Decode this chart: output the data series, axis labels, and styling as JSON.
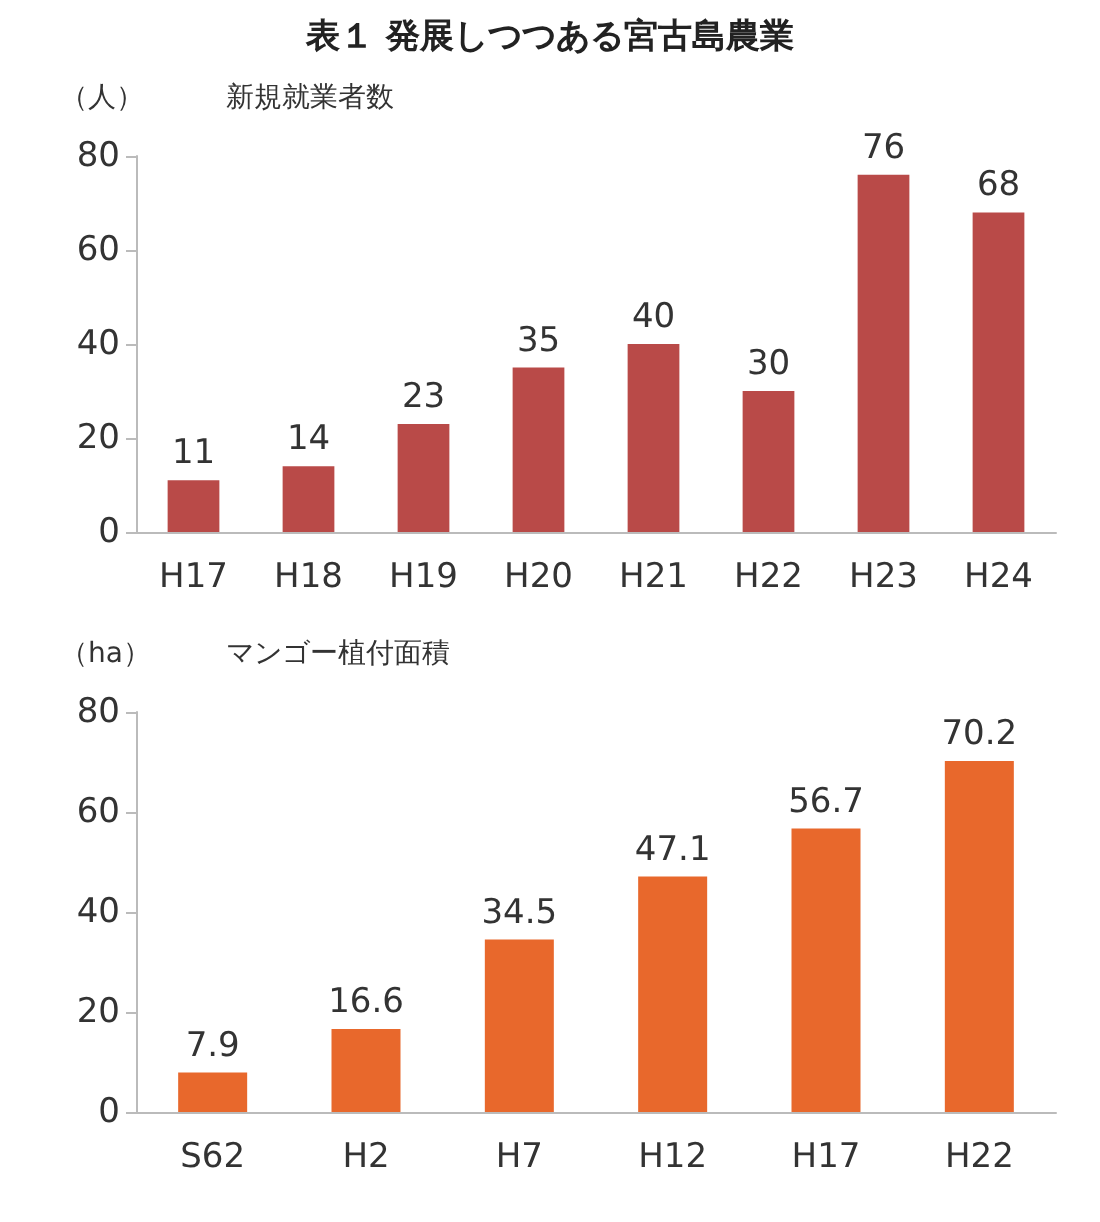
{
  "chart_data": [
    {
      "type": "bar",
      "title": "表１ 発展しつつある宮古島農業",
      "subtitle": "新規就業者数",
      "ylabel": "（人）",
      "categories": [
        "H17",
        "H18",
        "H19",
        "H20",
        "H21",
        "H22",
        "H23",
        "H24"
      ],
      "values": [
        11,
        14,
        23,
        35,
        40,
        30,
        76,
        68
      ],
      "color": "#b94a48",
      "ylim": [
        0,
        80
      ],
      "yticks": [
        0,
        20,
        40,
        60,
        80
      ],
      "grid": false,
      "data_labels": true
    },
    {
      "type": "bar",
      "subtitle": "マンゴー植付面積",
      "ylabel": "（ha）",
      "categories": [
        "S62",
        "H2",
        "H7",
        "H12",
        "H17",
        "H22"
      ],
      "values": [
        7.9,
        16.6,
        34.5,
        47.1,
        56.7,
        70.2
      ],
      "color": "#e8682c",
      "ylim": [
        0,
        80
      ],
      "yticks": [
        0,
        20,
        40,
        60,
        80
      ],
      "grid": false,
      "data_labels": true
    }
  ]
}
